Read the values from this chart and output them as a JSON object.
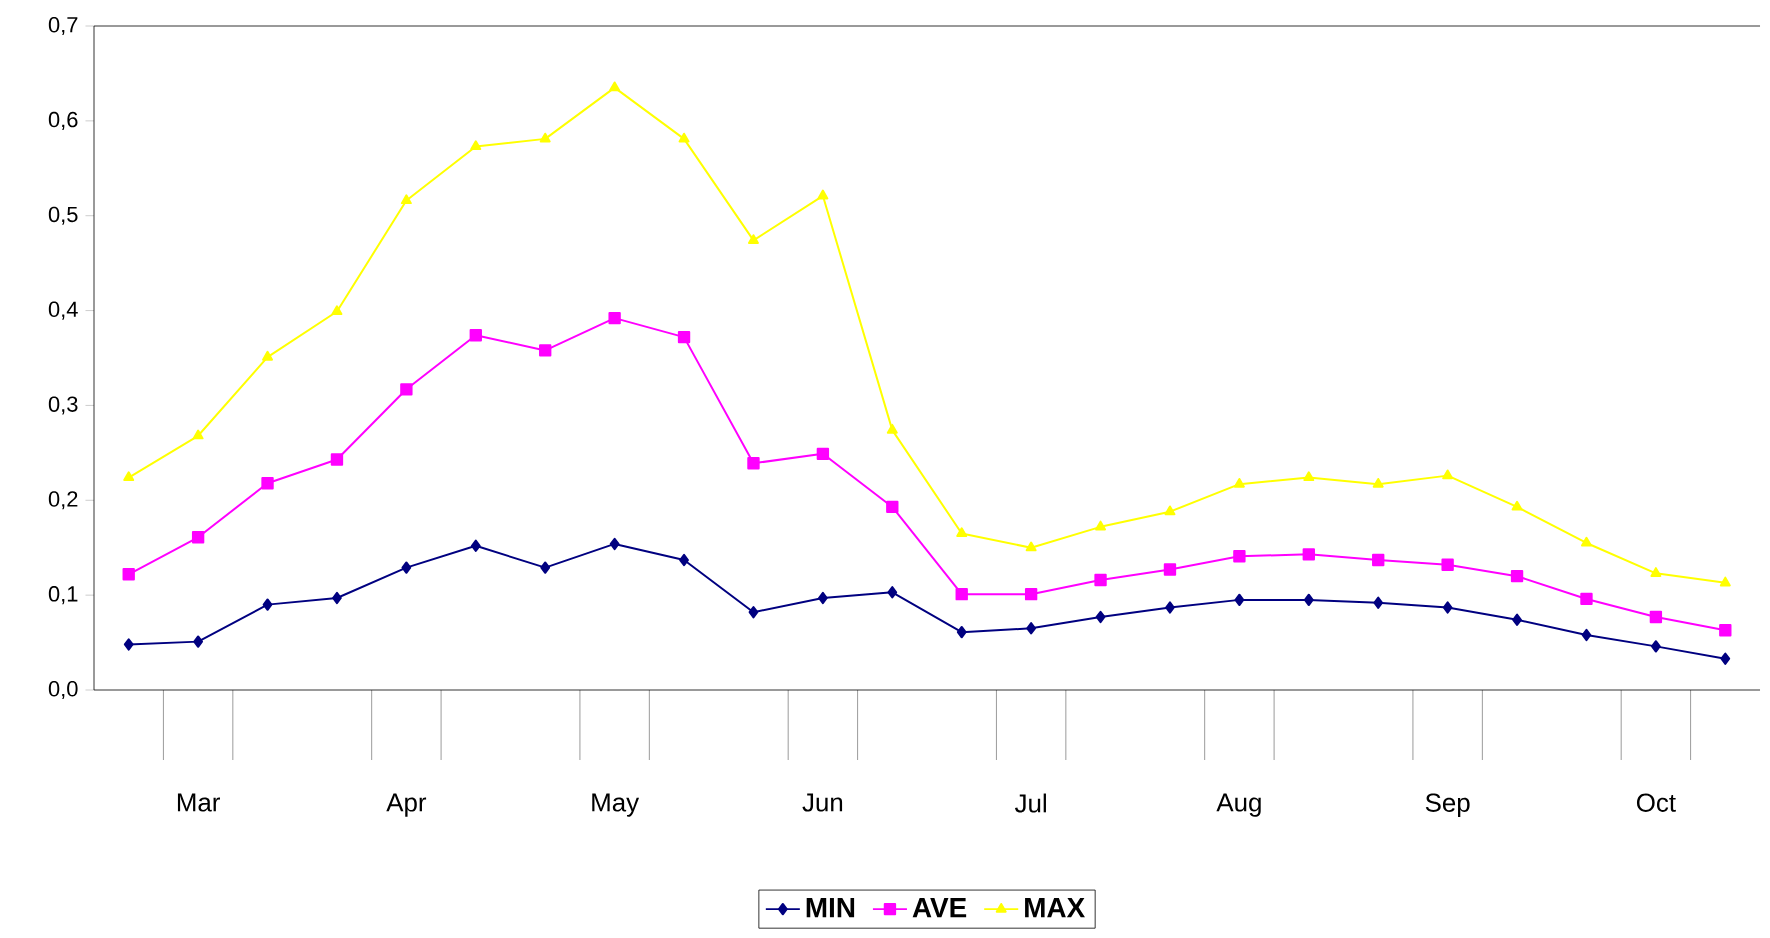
{
  "chart_data": {
    "type": "line",
    "categories": [
      null,
      "Mar",
      null,
      null,
      "Apr",
      null,
      null,
      "May",
      null,
      null,
      "Jun",
      null,
      null,
      "Jul",
      null,
      null,
      "Aug",
      null,
      null,
      "Sep",
      null,
      null,
      "Oct",
      null
    ],
    "series": [
      {
        "name": "MIN",
        "color": "#000080",
        "marker": "diamond",
        "values": [
          0.048,
          0.051,
          0.09,
          0.097,
          0.129,
          0.152,
          0.129,
          0.154,
          0.137,
          0.082,
          0.097,
          0.103,
          0.061,
          0.065,
          0.077,
          0.087,
          0.095,
          0.095,
          0.092,
          0.087,
          0.074,
          0.058,
          0.046,
          0.033
        ]
      },
      {
        "name": "AVE",
        "color": "#ff00ff",
        "marker": "square",
        "values": [
          0.122,
          0.161,
          0.218,
          0.243,
          0.317,
          0.374,
          0.358,
          0.392,
          0.372,
          0.239,
          0.249,
          0.193,
          0.101,
          0.101,
          0.116,
          0.127,
          0.141,
          0.143,
          0.137,
          0.132,
          0.12,
          0.096,
          0.077,
          0.063
        ]
      },
      {
        "name": "MAX",
        "color": "#ffff00",
        "marker": "triangle",
        "values": [
          0.224,
          0.268,
          0.351,
          0.399,
          0.516,
          0.573,
          0.581,
          0.635,
          0.581,
          0.474,
          0.521,
          0.274,
          0.165,
          0.15,
          0.172,
          0.188,
          0.217,
          0.224,
          0.217,
          0.226,
          0.193,
          0.155,
          0.123,
          0.113
        ]
      }
    ],
    "ylim": [
      0,
      0.7
    ],
    "yticks": [
      {
        "value": 0,
        "label": "0,0"
      },
      {
        "value": 0.1,
        "label": "0,1"
      },
      {
        "value": 0.2,
        "label": "0,2"
      },
      {
        "value": 0.3,
        "label": "0,3"
      },
      {
        "value": 0.4,
        "label": "0,4"
      },
      {
        "value": 0.5,
        "label": "0,5"
      },
      {
        "value": 0.6,
        "label": "0,6"
      },
      {
        "value": 0.7,
        "label": "0,7"
      }
    ],
    "grid": false,
    "legend": "bottom",
    "line_style": "solid"
  }
}
